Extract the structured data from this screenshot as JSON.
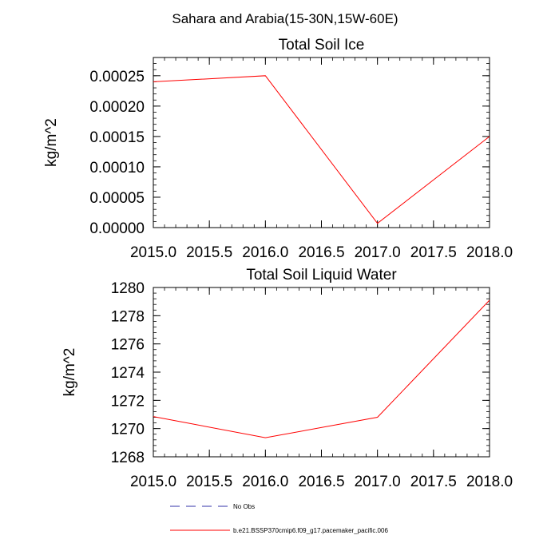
{
  "page_title": "Sahara and Arabia(15-30N,15W-60E)",
  "colors": {
    "series": "#ff0000",
    "obs": "#3333aa",
    "axes": "#000000"
  },
  "chart_data": [
    {
      "type": "line",
      "title": "Total Soil Ice",
      "xlabel": "",
      "ylabel": "kg/m^2",
      "xlim": [
        2015.0,
        2018.0
      ],
      "ylim": [
        0.0,
        0.00028
      ],
      "x_ticks": [
        2015.0,
        2015.5,
        2016.0,
        2016.5,
        2017.0,
        2017.5,
        2018.0
      ],
      "x_tick_labels": [
        "2015.0",
        "2015.5",
        "2016.0",
        "2016.5",
        "2017.0",
        "2017.5",
        "2018.0"
      ],
      "y_ticks": [
        0.0,
        5e-05,
        0.0001,
        0.00015,
        0.0002,
        0.00025
      ],
      "y_tick_labels": [
        "0.00000",
        "0.00005",
        "0.00010",
        "0.00015",
        "0.00020",
        "0.00025"
      ],
      "y_minor_step": 1e-05,
      "x": [
        2015.0,
        2016.0,
        2017.0,
        2018.0
      ],
      "values": [
        0.00024,
        0.00025,
        7e-06,
        0.00015
      ]
    },
    {
      "type": "line",
      "title": "Total Soil Liquid Water",
      "xlabel": "",
      "ylabel": "kg/m^2",
      "xlim": [
        2015.0,
        2018.0
      ],
      "ylim": [
        1268,
        1280
      ],
      "x_ticks": [
        2015.0,
        2015.5,
        2016.0,
        2016.5,
        2017.0,
        2017.5,
        2018.0
      ],
      "x_tick_labels": [
        "2015.0",
        "2015.5",
        "2016.0",
        "2016.5",
        "2017.0",
        "2017.5",
        "2018.0"
      ],
      "y_ticks": [
        1268,
        1270,
        1272,
        1274,
        1276,
        1278,
        1280
      ],
      "y_tick_labels": [
        "1268",
        "1270",
        "1272",
        "1274",
        "1276",
        "1278",
        "1280"
      ],
      "y_minor_step": 0.4,
      "x": [
        2015.0,
        2016.0,
        2017.0,
        2018.0
      ],
      "values": [
        1270.85,
        1269.35,
        1270.8,
        1279.1
      ]
    }
  ],
  "legend": [
    {
      "label": "No Obs",
      "style": "dashed",
      "color": "#3333aa"
    },
    {
      "label": "b.e21.BSSP370cmip6.f09_g17.pacemaker_pacific.006",
      "style": "solid",
      "color": "#ff0000"
    }
  ]
}
